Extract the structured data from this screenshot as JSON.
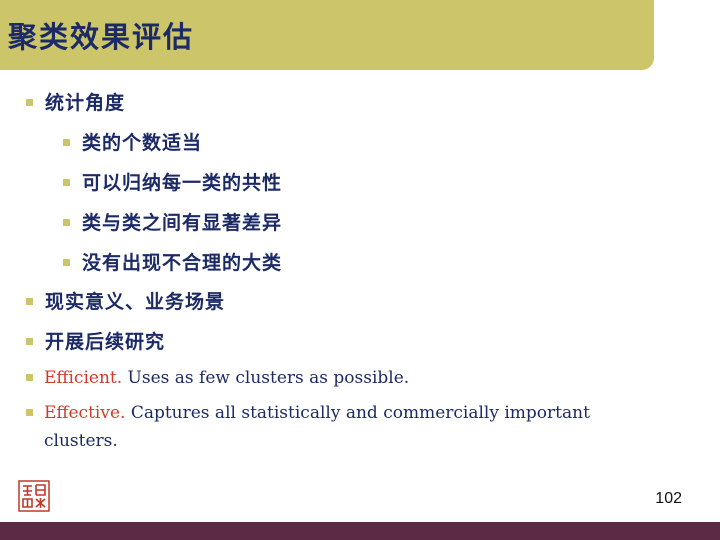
{
  "slide": {
    "title": "聚类效果评估",
    "page_number": "102",
    "colors": {
      "title_bar": "#cdc56a",
      "text": "#1c2a66",
      "highlight": "#d03a2a",
      "footer": "#5c2a44"
    },
    "logo_icon": "seal-logo-icon",
    "bullets": [
      {
        "text": "统计角度"
      },
      {
        "text": "类的个数适当"
      },
      {
        "text": "可以归纳每一类的共性"
      },
      {
        "text": "类与类之间有显著差异"
      },
      {
        "text": "没有出现不合理的大类"
      },
      {
        "text": "现实意义、业务场景"
      },
      {
        "text": "开展后续研究"
      },
      {
        "highlight": "Efficient.",
        "text": "Uses as few clusters as possible."
      },
      {
        "highlight": "Effective.",
        "text": "Captures all statistically and commercially important clusters."
      }
    ]
  }
}
